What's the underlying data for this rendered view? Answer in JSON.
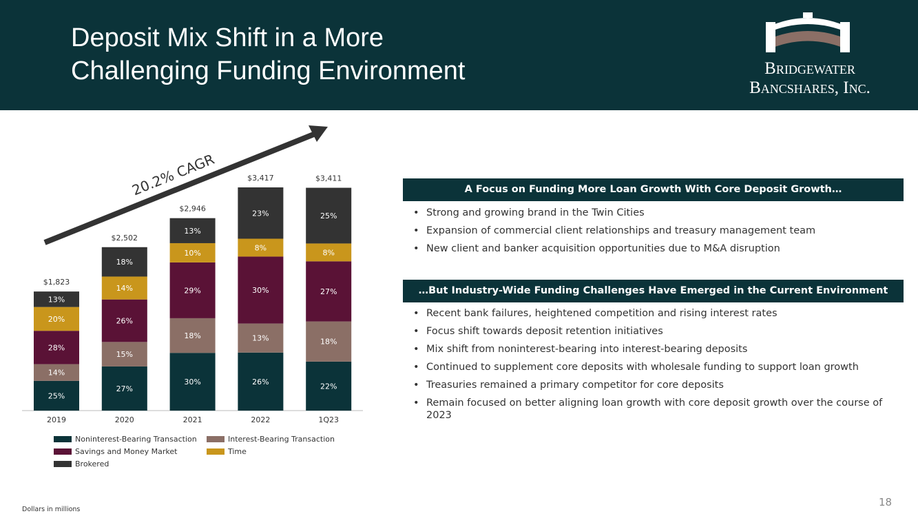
{
  "header": {
    "title_lines": [
      "Deposit Mix Shift in a More",
      "Challenging Funding Environment"
    ],
    "logo_lines": [
      "Bridgewater",
      "Bancshares, Inc."
    ]
  },
  "chart_data": {
    "type": "bar",
    "stacked": true,
    "categories": [
      "2019",
      "2020",
      "2021",
      "2022",
      "1Q23"
    ],
    "series": [
      {
        "name": "Noninterest-Bearing Transaction",
        "color": "#0b3339",
        "values": [
          25,
          27,
          30,
          26,
          22
        ],
        "value_labels": [
          "25%",
          "27%",
          "30%",
          "26%",
          "22%"
        ]
      },
      {
        "name": "Interest-Bearing Transaction",
        "color": "#8b6f66",
        "values": [
          14,
          15,
          18,
          13,
          18
        ],
        "value_labels": [
          "14%",
          "15%",
          "18%",
          "13%",
          "18%"
        ]
      },
      {
        "name": "Savings and Money Market",
        "color": "#5a1236",
        "values": [
          28,
          26,
          29,
          30,
          27
        ],
        "value_labels": [
          "28%",
          "26%",
          "29%",
          "30%",
          "27%"
        ]
      },
      {
        "name": "Time",
        "color": "#c9961c",
        "values": [
          20,
          14,
          10,
          8,
          8
        ],
        "value_labels": [
          "20%",
          "14%",
          "10%",
          "8%",
          "8%"
        ]
      },
      {
        "name": "Brokered",
        "color": "#333333",
        "values": [
          13,
          18,
          13,
          23,
          25
        ],
        "value_labels": [
          "13%",
          "18%",
          "13%",
          "23%",
          "25%"
        ]
      }
    ],
    "totals": {
      "values": [
        1823,
        2502,
        2946,
        3417,
        3411
      ],
      "value_labels": [
        "$1,823",
        "$2,502",
        "$2,946",
        "$3,417",
        "$3,411"
      ]
    },
    "annotation": "20.2% CAGR"
  },
  "sections": [
    {
      "heading": "A Focus on Funding More Loan Growth With Core Deposit Growth…",
      "bullets": [
        "Strong and growing brand in the Twin Cities",
        "Expansion of commercial client relationships and treasury management team",
        "New client and banker acquisition opportunities due to M&A disruption"
      ]
    },
    {
      "heading": "…But Industry-Wide Funding Challenges Have Emerged in the Current Environment",
      "bullets": [
        "Recent bank failures, heightened competition and rising interest rates",
        "Focus shift towards deposit retention initiatives",
        "Mix shift from noninterest-bearing into interest-bearing deposits",
        "Continued to supplement core deposits with wholesale funding to support loan growth",
        "Treasuries remained a primary competitor for core deposits",
        "Remain focused on better aligning loan growth with core deposit growth over the course of 2023"
      ]
    }
  ],
  "footnote": "Dollars in millions",
  "page_number": 18
}
